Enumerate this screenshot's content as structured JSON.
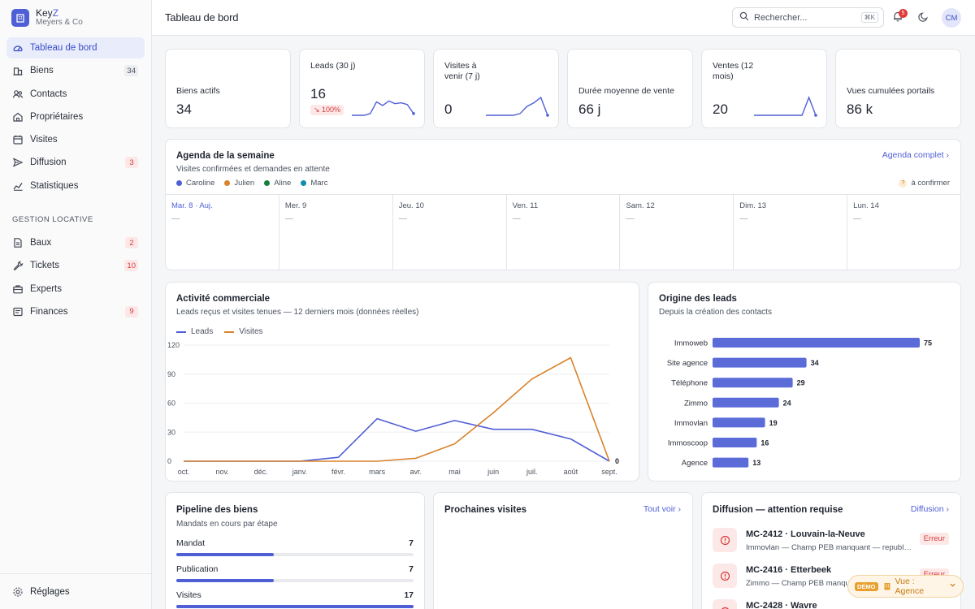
{
  "brand": {
    "name_prefix": "Key",
    "name_accent": "Z",
    "subtitle": "Meyers & Co"
  },
  "sidebar": {
    "items": [
      {
        "label": "Tableau de bord",
        "icon": "dashboard-gauge-icon",
        "active": true,
        "badge": ""
      },
      {
        "label": "Biens",
        "icon": "building-icon",
        "badge": "34",
        "badge_color": "grey"
      },
      {
        "label": "Contacts",
        "icon": "users-icon",
        "badge": ""
      },
      {
        "label": "Propriétaires",
        "icon": "home-icon",
        "badge": ""
      },
      {
        "label": "Visites",
        "icon": "calendar-icon",
        "badge": ""
      },
      {
        "label": "Diffusion",
        "icon": "send-icon",
        "badge": "3",
        "badge_color": "red"
      },
      {
        "label": "Statistiques",
        "icon": "chart-line-icon",
        "badge": ""
      }
    ],
    "section_title": "GESTION LOCATIVE",
    "rental_items": [
      {
        "label": "Baux",
        "icon": "document-icon",
        "badge": "2",
        "badge_color": "red"
      },
      {
        "label": "Tickets",
        "icon": "wrench-icon",
        "badge": "10",
        "badge_color": "red"
      },
      {
        "label": "Experts",
        "icon": "briefcase-icon",
        "badge": ""
      },
      {
        "label": "Finances",
        "icon": "receipt-icon",
        "badge": "9",
        "badge_color": "red"
      }
    ],
    "footer_label": "Réglages"
  },
  "header": {
    "title": "Tableau de bord",
    "search_placeholder": "Rechercher...",
    "search_shortcut": "⌘K",
    "notification_count": "5",
    "avatar_initials": "CM"
  },
  "kpis": [
    {
      "label": "Biens actifs",
      "value": "34"
    },
    {
      "label": "Leads (30 j)",
      "value": "16",
      "delta": "↘ 100%",
      "spark": [
        0,
        0,
        0,
        0.1,
        0.75,
        0.55,
        0.8,
        0.65,
        0.7,
        0.6,
        0.1
      ]
    },
    {
      "label": "Visites à venir (7 j)",
      "value": "0",
      "spark": [
        0,
        0,
        0,
        0,
        0,
        0.1,
        0.5,
        0.7,
        1,
        0
      ]
    },
    {
      "label": "Durée moyenne de vente",
      "value": "66 j"
    },
    {
      "label": "Ventes (12 mois)",
      "value": "20",
      "spark": [
        0,
        0,
        0,
        0,
        0,
        0,
        0,
        0,
        1,
        0
      ]
    },
    {
      "label": "Vues cumulées portails",
      "value": "86 k"
    }
  ],
  "agenda": {
    "title": "Agenda de la semaine",
    "subtitle": "Visites confirmées et demandes en attente",
    "link": "Agenda complet",
    "agents": [
      {
        "name": "Caroline",
        "color": "#4f5fd6"
      },
      {
        "name": "Julien",
        "color": "#d9822b"
      },
      {
        "name": "Aline",
        "color": "#15803d"
      },
      {
        "name": "Marc",
        "color": "#0e8ea8"
      }
    ],
    "pending_label": "à confirmer",
    "pending_icon": "?",
    "days": [
      {
        "label": "Mar. 8 · Auj.",
        "today": true,
        "empty": "—"
      },
      {
        "label": "Mer. 9",
        "empty": "—"
      },
      {
        "label": "Jeu. 10",
        "empty": "—"
      },
      {
        "label": "Ven. 11",
        "empty": "—"
      },
      {
        "label": "Sam. 12",
        "empty": "—"
      },
      {
        "label": "Dim. 13",
        "empty": "—"
      },
      {
        "label": "Lun. 14",
        "empty": "—"
      }
    ]
  },
  "activity": {
    "title": "Activité commerciale",
    "subtitle": "Leads reçus et visites tenues — 12 derniers mois (données réelles)"
  },
  "origins": {
    "title": "Origine des leads",
    "subtitle": "Depuis la création des contacts"
  },
  "chart_data": [
    {
      "type": "line",
      "x": [
        "oct.",
        "nov.",
        "déc.",
        "janv.",
        "févr.",
        "mars",
        "avr.",
        "mai",
        "juin",
        "juil.",
        "août",
        "sept."
      ],
      "series": [
        {
          "name": "Leads",
          "color": "#4f5fd6",
          "values": [
            0,
            0,
            0,
            0,
            4,
            44,
            31,
            42,
            33,
            33,
            23,
            0
          ]
        },
        {
          "name": "Visites",
          "color": "#d9822b",
          "values": [
            0,
            0,
            0,
            0,
            0,
            0,
            3,
            18,
            50,
            85,
            107,
            0
          ]
        }
      ],
      "yticks": [
        0,
        30,
        60,
        90,
        120
      ],
      "ylim": [
        0,
        120
      ],
      "end_label": "0",
      "grid": true,
      "legend": "top-left"
    },
    {
      "type": "bar",
      "orientation": "horizontal",
      "categories": [
        "Immoweb",
        "Site agence",
        "Téléphone",
        "Zimmo",
        "Immovlan",
        "Immoscoop",
        "Agence"
      ],
      "values": [
        75,
        34,
        29,
        24,
        19,
        16,
        13
      ],
      "color": "#5b6cd9",
      "data_labels": true
    }
  ],
  "pipeline": {
    "title": "Pipeline des biens",
    "subtitle": "Mandats en cours par étape",
    "stages": [
      {
        "label": "Mandat",
        "count": 7
      },
      {
        "label": "Publication",
        "count": 7
      },
      {
        "label": "Visites",
        "count": 17
      }
    ],
    "max": 17
  },
  "visits": {
    "title": "Prochaines visites",
    "link": "Tout voir"
  },
  "diffusion": {
    "title": "Diffusion — attention requise",
    "link": "Diffusion",
    "items": [
      {
        "title": "MC-2412 · Louvain-la-Neuve",
        "subtitle": "Immovlan — Champ PEB manquant — republication requise",
        "status": "Erreur"
      },
      {
        "title": "MC-2416 · Etterbeek",
        "subtitle": "Zimmo — Champ PEB manquant — republication requise",
        "status": "Erreur"
      },
      {
        "title": "MC-2428 · Wavre",
        "subtitle": "",
        "status": ""
      }
    ]
  },
  "demo": {
    "tag": "DÉMO",
    "label": "Vue : Agence"
  }
}
